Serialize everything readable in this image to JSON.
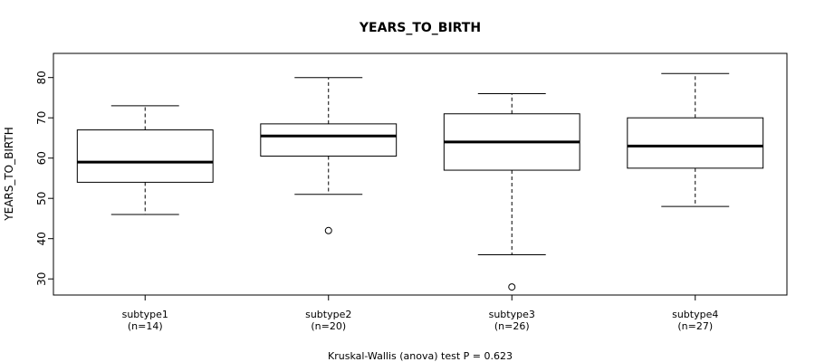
{
  "chart_data": {
    "type": "box",
    "title": "YEARS_TO_BIRTH",
    "ylabel": "YEARS_TO_BIRTH",
    "xlabel": "",
    "ylim": [
      26,
      86
    ],
    "yticks": [
      30,
      40,
      50,
      60,
      70,
      80
    ],
    "grid": false,
    "legend": "none",
    "footer": "Kruskal-Wallis (anova) test P = 0.623",
    "groups": [
      {
        "label": "subtype1",
        "n_label": "(n=14)",
        "whisker_low": 46,
        "q1": 54,
        "median": 59,
        "q3": 67,
        "whisker_high": 73,
        "outliers": []
      },
      {
        "label": "subtype2",
        "n_label": "(n=20)",
        "whisker_low": 51,
        "q1": 60.5,
        "median": 65.5,
        "q3": 68.5,
        "whisker_high": 80,
        "outliers": [
          42
        ]
      },
      {
        "label": "subtype3",
        "n_label": "(n=26)",
        "whisker_low": 36,
        "q1": 57,
        "median": 64,
        "q3": 71,
        "whisker_high": 76,
        "outliers": [
          28
        ]
      },
      {
        "label": "subtype4",
        "n_label": "(n=27)",
        "whisker_low": 48,
        "q1": 57.5,
        "median": 63,
        "q3": 70,
        "whisker_high": 81,
        "outliers": []
      }
    ]
  }
}
